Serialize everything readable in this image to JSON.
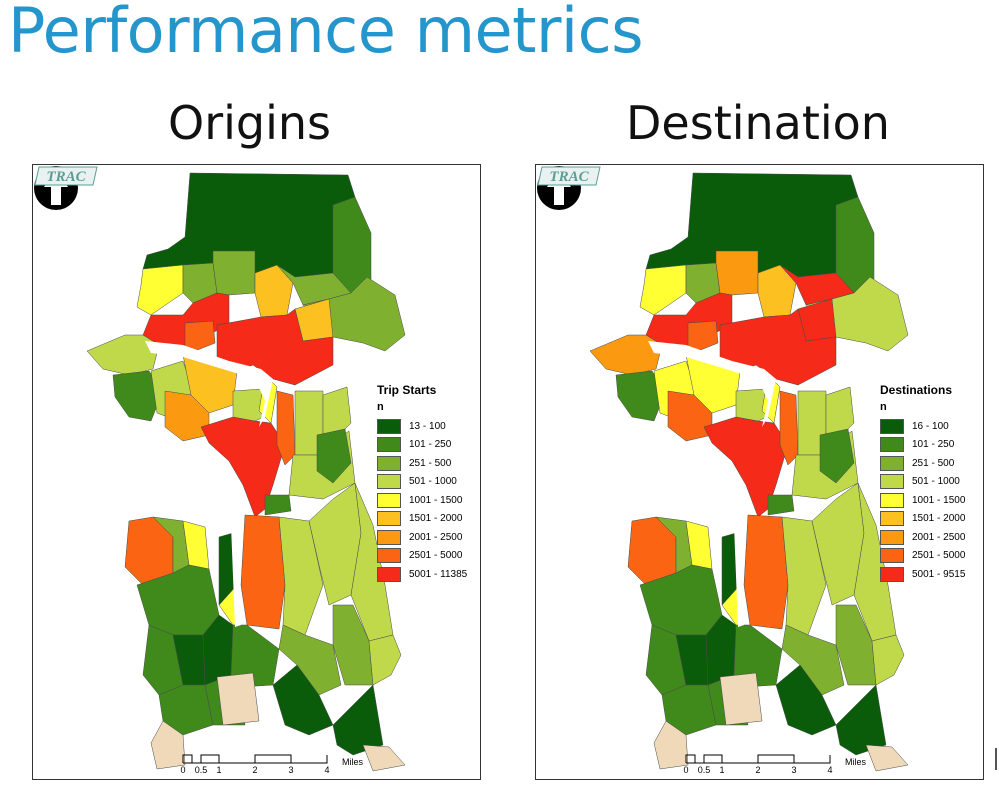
{
  "slide": {
    "title": "Performance metrics"
  },
  "palette": [
    "#0a5c0a",
    "#3f8a1a",
    "#7fb030",
    "#c0d94a",
    "#ffff33",
    "#fcc020",
    "#fb9a10",
    "#fa6412",
    "#f52a18"
  ],
  "land_color": "#efd9b8",
  "maps": [
    {
      "panel_title": "Origins",
      "logo_text": "TRAC",
      "north_icon": "north-arrow-icon",
      "legend": {
        "title": "Trip Starts",
        "subtitle": "n",
        "classes": [
          {
            "label": "13 - 100",
            "color": "#0a5c0a"
          },
          {
            "label": "101 - 250",
            "color": "#3f8a1a"
          },
          {
            "label": "251 - 500",
            "color": "#7fb030"
          },
          {
            "label": "501 - 1000",
            "color": "#c0d94a"
          },
          {
            "label": "1001 - 1500",
            "color": "#ffff33"
          },
          {
            "label": "1501 - 2000",
            "color": "#fcc020"
          },
          {
            "label": "2001 - 2500",
            "color": "#fb9a10"
          },
          {
            "label": "2501 - 5000",
            "color": "#fa6412"
          },
          {
            "label": "5001 - 11385",
            "color": "#f52a18"
          }
        ]
      },
      "scale": {
        "ticks": [
          "0",
          "0.5",
          "1",
          "2",
          "3",
          "4"
        ],
        "unit": "Miles"
      }
    },
    {
      "panel_title": "Destination",
      "logo_text": "TRAC",
      "north_icon": "north-arrow-icon",
      "legend": {
        "title": "Destinations",
        "subtitle": "n",
        "classes": [
          {
            "label": "16 - 100",
            "color": "#0a5c0a"
          },
          {
            "label": "101 - 250",
            "color": "#3f8a1a"
          },
          {
            "label": "251 - 500",
            "color": "#7fb030"
          },
          {
            "label": "501 - 1000",
            "color": "#c0d94a"
          },
          {
            "label": "1001 - 1500",
            "color": "#ffff33"
          },
          {
            "label": "1501 - 2000",
            "color": "#fcc020"
          },
          {
            "label": "2001 - 2500",
            "color": "#fb9a10"
          },
          {
            "label": "2501 - 5000",
            "color": "#fa6412"
          },
          {
            "label": "5001 - 9515",
            "color": "#f52a18"
          }
        ]
      },
      "scale": {
        "ticks": [
          "0",
          "0.5",
          "1",
          "2",
          "3",
          "4"
        ],
        "unit": "Miles"
      }
    }
  ]
}
